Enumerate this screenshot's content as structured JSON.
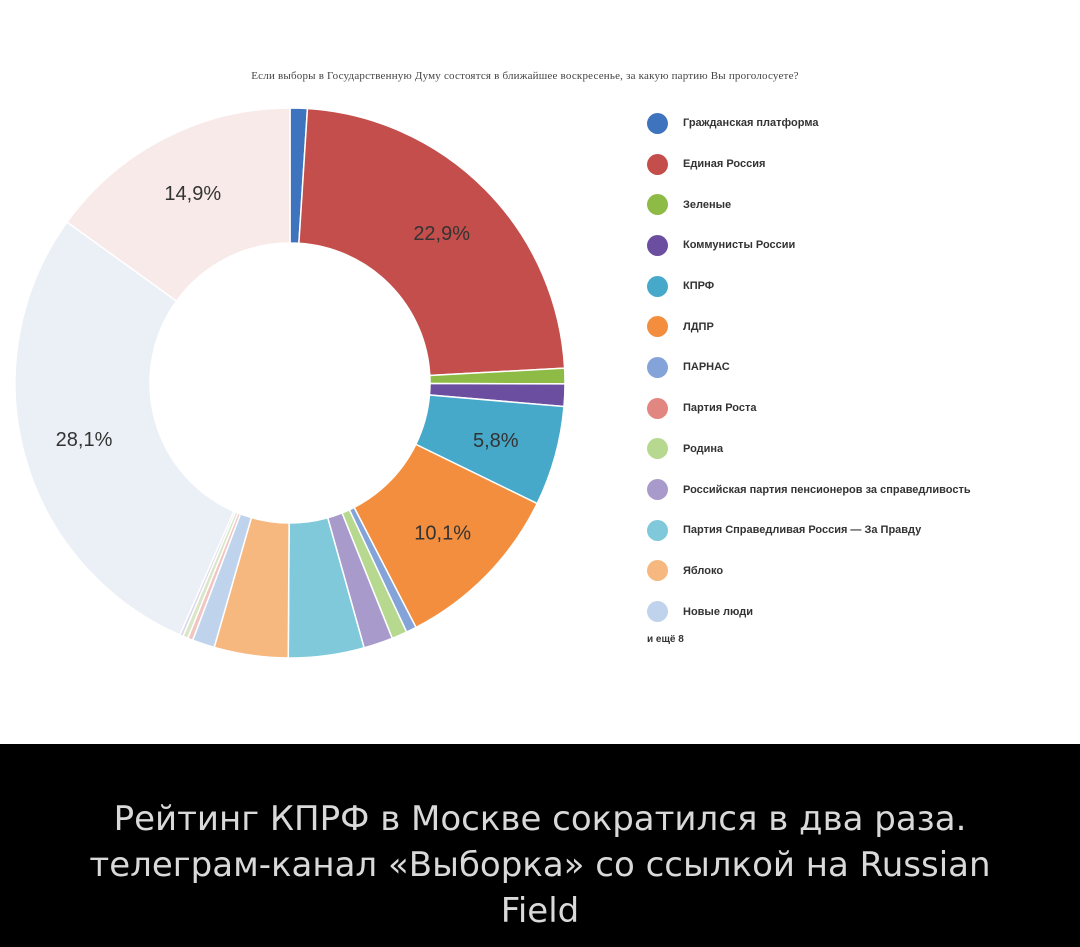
{
  "chart_data": {
    "type": "pie",
    "title": "Если выборы в Государственную Думу состоятся в ближайшее воскресенье, за какую партию Вы проголосуете?",
    "legend_position": "right",
    "legend_more": "и ещё 8",
    "slices": [
      {
        "name": "Гражданская платформа",
        "value": 1.0,
        "color": "#3E74BE",
        "label": ""
      },
      {
        "name": "Единая Россия",
        "value": 22.9,
        "color": "#C44E4C",
        "label": "22,9%"
      },
      {
        "name": "Зеленые",
        "value": 0.9,
        "color": "#8DBB45",
        "label": ""
      },
      {
        "name": "Коммунисты России",
        "value": 1.3,
        "color": "#6B4E9F",
        "label": ""
      },
      {
        "name": "КПРФ",
        "value": 5.8,
        "color": "#47A9C9",
        "label": "5,8%"
      },
      {
        "name": "ЛДПР",
        "value": 10.1,
        "color": "#F28E3D",
        "label": "10,1%"
      },
      {
        "name": "ПАРНАС",
        "value": 0.6,
        "color": "#84A3D8",
        "label": ""
      },
      {
        "name": "Партия Роста",
        "value": 0.0,
        "color": "#E28681",
        "label": ""
      },
      {
        "name": "Родина",
        "value": 0.9,
        "color": "#B6D88F",
        "label": ""
      },
      {
        "name": "Российская партия пенсионеров за справедливость",
        "value": 1.7,
        "color": "#A89BCC",
        "label": ""
      },
      {
        "name": "Партия Справедливая Россия — За Правду",
        "value": 4.4,
        "color": "#7FC9DB",
        "label": ""
      },
      {
        "name": "Яблоко",
        "value": 4.3,
        "color": "#F6B87F",
        "label": ""
      },
      {
        "name": "Новые люди",
        "value": 1.3,
        "color": "#BFD3EC",
        "label": ""
      },
      {
        "name": "",
        "value": 0.3,
        "color": "#F0C5C2",
        "label": ""
      },
      {
        "name": "",
        "value": 0.3,
        "color": "#D9E7C8",
        "label": ""
      },
      {
        "name": "",
        "value": 0.2,
        "color": "#DDD7EA",
        "label": ""
      },
      {
        "name": "",
        "value": 28.1,
        "color": "#EAF0F6",
        "label": "28,1%"
      },
      {
        "name": "",
        "value": 14.9,
        "color": "#F9EAEA",
        "label": "14,9%"
      }
    ]
  },
  "caption": "Рейтинг КПРФ в Москве сократился в два раза. телеграм-канал «Выборка» со ссылкой на Russian Field"
}
